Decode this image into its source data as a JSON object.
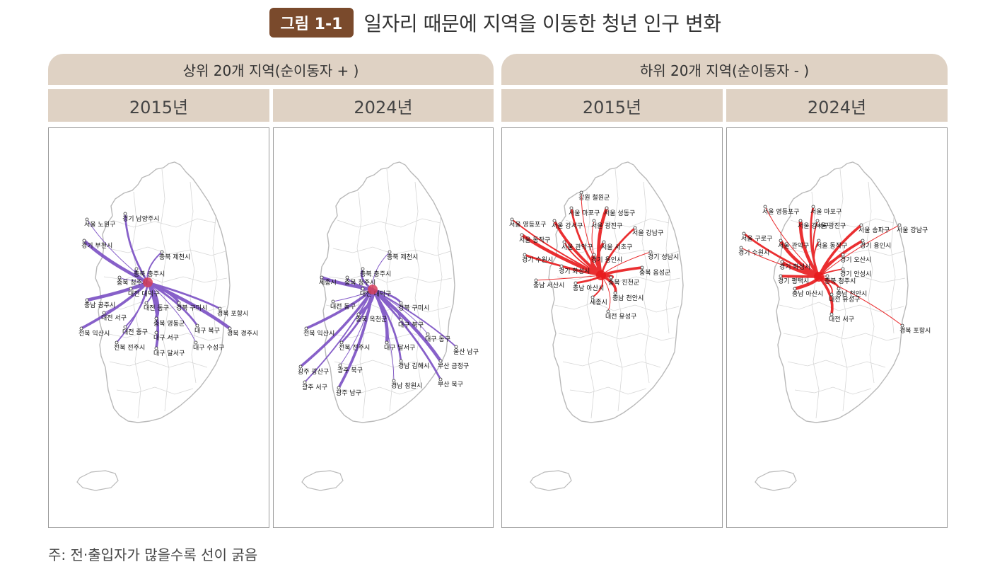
{
  "header": {
    "figure_label": "그림 1-1",
    "title": "일자리 때문에 지역을 이동한 청년 인구 변화"
  },
  "groups": [
    {
      "label": "상위 20개 지역(순이동자 + )"
    },
    {
      "label": "하위 20개 지역(순이동자 - )"
    }
  ],
  "years": [
    "2015년",
    "2024년",
    "2015년",
    "2024년"
  ],
  "colors": {
    "inflow_lines": "#7b4fc4",
    "outflow_lines": "#e8191b",
    "hub_inflow": "#d6405a",
    "header_bg": "#dfd2c4",
    "badge_bg": "#7a4a2c"
  },
  "panels": [
    {
      "labels": [
        "서울 노원구",
        "경기 남양주시",
        "경기 부천시",
        "충북 제천시",
        "충북 충주시",
        "충북 청주시",
        "대전 대덕구",
        "충남 공주시",
        "대전 동구",
        "경북 구미시",
        "대전 서구",
        "경북 포항시",
        "충북 영동군",
        "대전 중구",
        "전북 익산시",
        "대구 서구",
        "대구 북구",
        "경북 경주시",
        "전북 전주시",
        "대구 달서구",
        "대구 수성구"
      ]
    },
    {
      "labels": [
        "충북 제천시",
        "충북 충주시",
        "세종시",
        "충북 청주시",
        "대전 대덕구",
        "대전 동구",
        "경북 구미시",
        "충북 옥천군",
        "대구 북구",
        "전북 익산시",
        "대구 동구",
        "전북 전주시",
        "대구 달서구",
        "울산 남구",
        "광주 광산구",
        "광주 북구",
        "경남 김해시",
        "부산 금정구",
        "광주 서구",
        "광주 남구",
        "경남 창원시",
        "부산 북구"
      ]
    },
    {
      "labels": [
        "강원 철원군",
        "서울 마포구",
        "서울 성동구",
        "서울 영등포구",
        "서울 강서구",
        "서울 광진구",
        "서울 강남구",
        "서울 동작구",
        "서울 관악구",
        "서울 서초구",
        "경기 성남시",
        "경기 수원시",
        "경기 용인시",
        "경기 화성시",
        "충북 음성군",
        "충남 서산시",
        "충남 아산시",
        "충북 진천군",
        "세종시",
        "충남 천안시",
        "대전 유성구"
      ]
    },
    {
      "labels": [
        "서울 영등포구",
        "서울 마포구",
        "서울 강서구",
        "서울 광진구",
        "서울 송파구",
        "서울 강남구",
        "서울 구로구",
        "서울 관악구",
        "서울 동작구",
        "경기 용인시",
        "경기 수원시",
        "경기 오산시",
        "경기 화성시",
        "경기 안성시",
        "경기 평택시",
        "충북 청주시",
        "충남 천안시",
        "충남 아산시",
        "대전 유성구",
        "대전 서구",
        "경북 포항시"
      ]
    }
  ],
  "footnote": "주: 전·출입자가 많을수록 선이 굵음"
}
